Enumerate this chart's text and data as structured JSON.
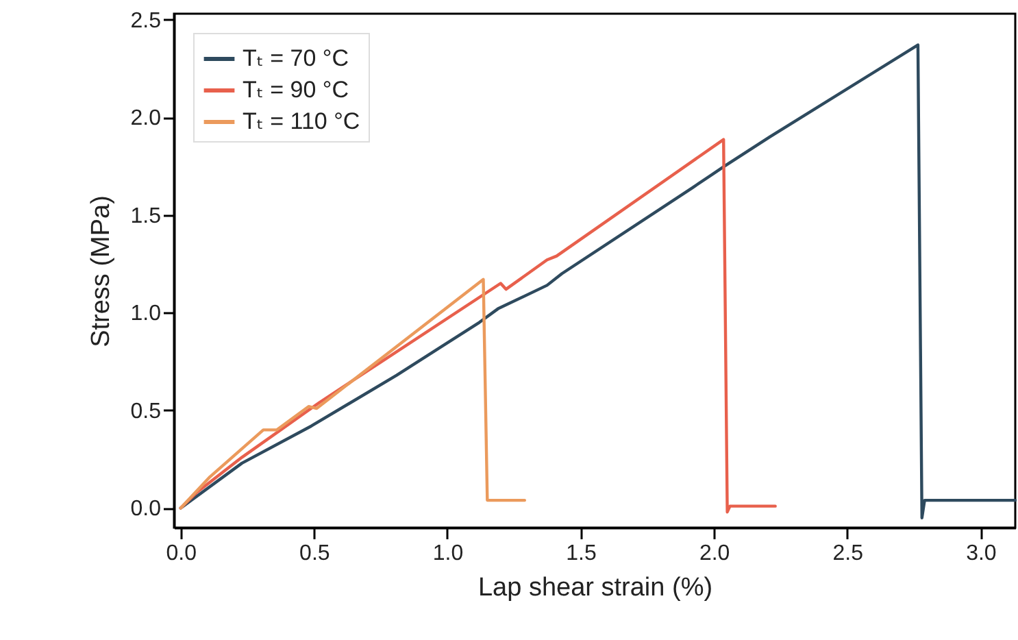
{
  "chart_data": {
    "type": "line",
    "xlabel": "Lap shear strain (%)",
    "ylabel": "Stress (MPa)",
    "xlim": [
      -0.025,
      3.13
    ],
    "ylim": [
      -0.1,
      2.53
    ],
    "xticks": [
      {
        "value": 0,
        "label": "0.0"
      },
      0.5,
      {
        "value": 1,
        "label": "1.0"
      },
      1.5,
      {
        "value": 2,
        "label": "2.0"
      },
      2.5,
      {
        "value": 3,
        "label": "3.0"
      }
    ],
    "yticks": [
      {
        "value": 0,
        "label": "0.0"
      },
      0.5,
      {
        "value": 1,
        "label": "1.0"
      },
      1.5,
      {
        "value": 2,
        "label": "2.0"
      },
      2.5
    ],
    "grid": false,
    "legend": "top left",
    "marker": "none",
    "line_style": "solid",
    "series": [
      {
        "name": "Tₜ = 70 °C",
        "color": "#2e4a5e",
        "x": [
          0,
          0.23,
          0.49,
          0.81,
          1.12,
          1.19,
          1.374,
          1.43,
          1.92,
          2.04,
          2.21,
          2.765,
          2.78,
          2.79,
          3.13
        ],
        "values": [
          0,
          0.23,
          0.42,
          0.68,
          0.95,
          1.02,
          1.14,
          1.2,
          1.64,
          1.75,
          1.9,
          2.37,
          -0.05,
          0.04,
          0.04
        ]
      },
      {
        "name": "Tₜ = 90 °C",
        "color": "#e8604c",
        "x": [
          0,
          0.06,
          0.23,
          0.52,
          1.2,
          1.22,
          1.374,
          1.41,
          2.036,
          2.05,
          2.06,
          2.23
        ],
        "values": [
          0,
          0.08,
          0.26,
          0.54,
          1.15,
          1.12,
          1.27,
          1.29,
          1.886,
          -0.02,
          0.01,
          0.01
        ]
      },
      {
        "name": "Tₜ = 110 °C",
        "color": "#eb9a5c",
        "x": [
          0,
          0.11,
          0.31,
          0.36,
          0.48,
          0.51,
          1.135,
          1.15,
          1.29
        ],
        "values": [
          0,
          0.16,
          0.4,
          0.4,
          0.52,
          0.51,
          1.17,
          0.04,
          0.04
        ]
      }
    ]
  }
}
